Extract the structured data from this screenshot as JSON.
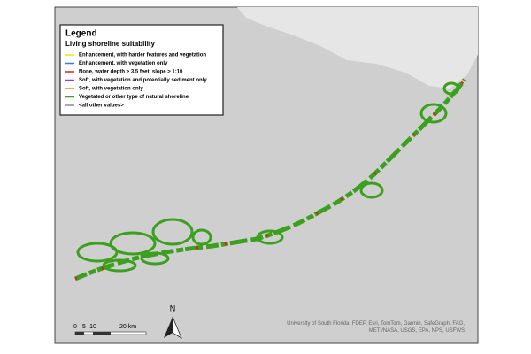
{
  "legend": {
    "title": "Legend",
    "subtitle": "Living shoreline suitability",
    "items": [
      {
        "label": "Enhancement, with harder features and vegetation",
        "color": "#f2e600"
      },
      {
        "label": "Enhancement, with vegetation only",
        "color": "#3a7fd5"
      },
      {
        "label": "None, water depth > 3.5 feet, slope > 1:10",
        "color": "#e0201b"
      },
      {
        "label": "Soft, with vegetation and potentially sediment only",
        "color": "#9b3fc4"
      },
      {
        "label": "Soft, with vegetation only",
        "color": "#f08a1c"
      },
      {
        "label": "Vegetated or other type of natural shoreline",
        "color": "#3aa01e"
      },
      {
        "label": "<all other values>",
        "color": "#8c8c8c"
      }
    ]
  },
  "scale_bar": {
    "labels": [
      "0",
      "5",
      "10",
      "20 km"
    ]
  },
  "north_arrow": {
    "label": "N"
  },
  "attribution": "University of South Florida, FDEP, Esri, TomTom, Garmin, SafeGraph, FAO, METI/NASA, USGS, EPA, NPS, USFWS"
}
